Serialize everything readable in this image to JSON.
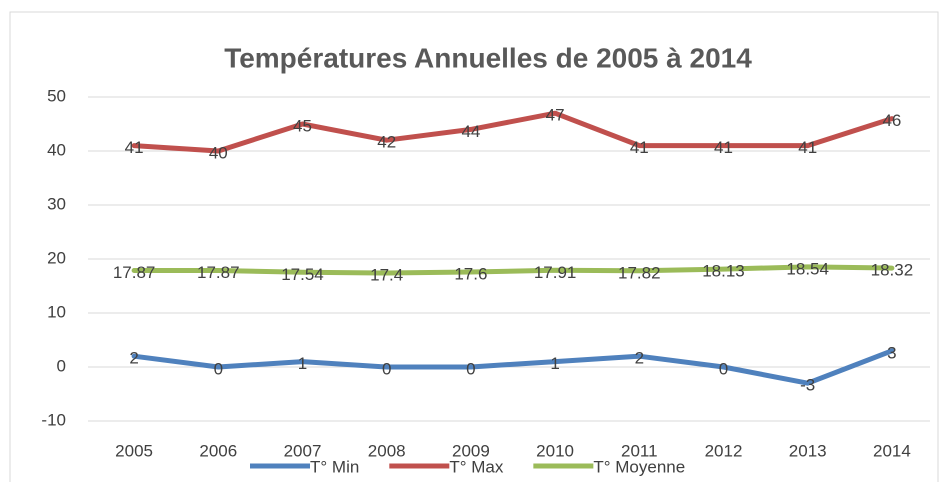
{
  "chart_data": {
    "type": "line",
    "title": "Températures Annuelles de  2005 à 2014",
    "categories": [
      "2005",
      "2006",
      "2007",
      "2008",
      "2009",
      "2010",
      "2011",
      "2012",
      "2013",
      "2014"
    ],
    "series": [
      {
        "name": "T° Min",
        "color": "#4f81bd",
        "values": [
          2,
          0,
          1,
          0,
          0,
          1,
          2,
          0,
          -3,
          3
        ]
      },
      {
        "name": "T° Max",
        "color": "#c0504d",
        "values": [
          41,
          40,
          45,
          42,
          44,
          47,
          41,
          41,
          41,
          46
        ]
      },
      {
        "name": "T° Moyenne",
        "color": "#9bbb59",
        "values": [
          17.87,
          17.87,
          17.54,
          17.4,
          17.6,
          17.91,
          17.82,
          18.13,
          18.54,
          18.32
        ]
      }
    ],
    "ylim": [
      -10,
      50
    ],
    "yticks": [
      -10,
      0,
      10,
      20,
      30,
      40,
      50
    ],
    "grid": true,
    "legend": "bottom"
  }
}
